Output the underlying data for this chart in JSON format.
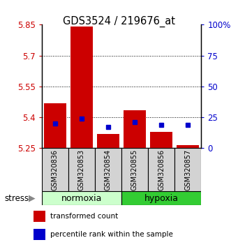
{
  "title": "GDS3524 / 219676_at",
  "samples": [
    "GSM320836",
    "GSM320853",
    "GSM320854",
    "GSM320855",
    "GSM320856",
    "GSM320857"
  ],
  "red_values": [
    5.47,
    5.84,
    5.32,
    5.435,
    5.33,
    5.265
  ],
  "blue_pct_values": [
    20,
    24,
    17,
    21,
    19,
    19
  ],
  "ylim": [
    5.25,
    5.85
  ],
  "y_ticks": [
    5.25,
    5.4,
    5.55,
    5.7,
    5.85
  ],
  "y_tick_labels": [
    "5.25",
    "5.4",
    "5.55",
    "5.7",
    "5.85"
  ],
  "y2_ticks": [
    0,
    25,
    50,
    75,
    100
  ],
  "y2_tick_labels": [
    "0",
    "25",
    "50",
    "75",
    "100%"
  ],
  "base_value": 5.25,
  "bar_width": 0.85,
  "red_color": "#cc0000",
  "blue_color": "#0000cc",
  "normoxia_label": "normoxia",
  "hypoxia_label": "hypoxia",
  "stress_label": "stress",
  "normoxia_color": "#ccffcc",
  "hypoxia_color": "#33cc33",
  "tick_color_left": "#cc0000",
  "tick_color_right": "#0000cc",
  "legend_red": "transformed count",
  "legend_blue": "percentile rank within the sample",
  "sample_box_color": "#d3d3d3",
  "figsize": [
    3.41,
    3.54
  ],
  "dpi": 100
}
